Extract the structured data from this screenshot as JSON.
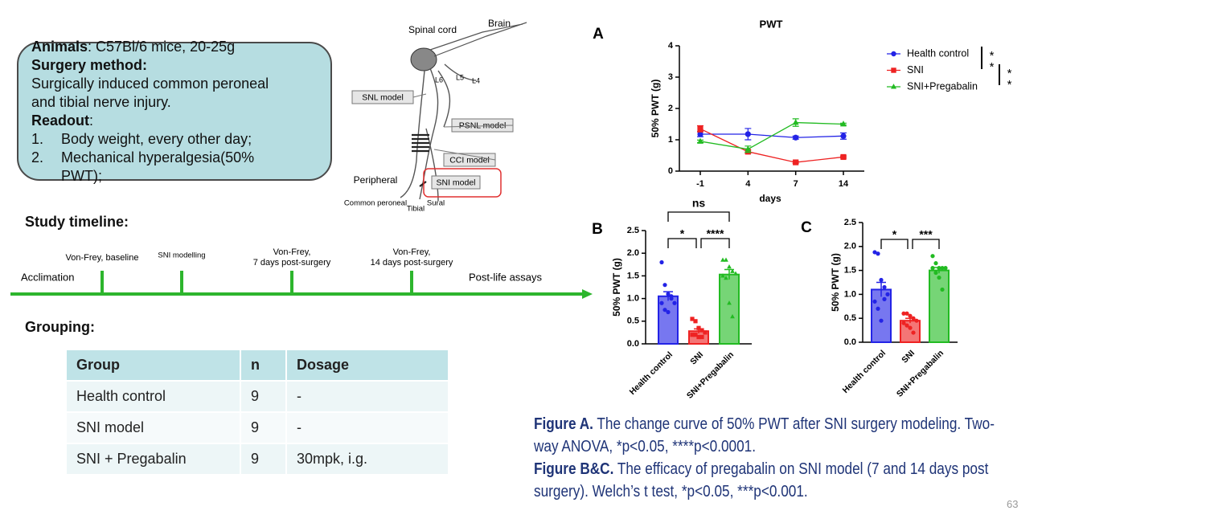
{
  "chart_data": [
    {
      "type": "line",
      "panel": "A",
      "title": "PWT",
      "xlabel": "days",
      "ylabel": "50% PWT (g)",
      "categories": [
        "-1",
        "4",
        "7",
        "14"
      ],
      "ylim": [
        0,
        4
      ],
      "yticks": [
        0,
        1,
        2,
        3,
        4
      ],
      "series": [
        {
          "name": "Health control",
          "color": "#2323e6",
          "marker": "circle",
          "values": [
            1.18,
            1.18,
            1.07,
            1.12
          ],
          "errors": [
            0.08,
            0.18,
            0.05,
            0.1
          ]
        },
        {
          "name": "SNI",
          "color": "#ee2222",
          "marker": "square",
          "values": [
            1.35,
            0.62,
            0.28,
            0.45
          ],
          "errors": [
            0.1,
            0.05,
            0.03,
            0.03
          ]
        },
        {
          "name": "SNI+Pregabalin",
          "color": "#22bb22",
          "marker": "triangle",
          "values": [
            0.95,
            0.7,
            1.55,
            1.5
          ],
          "errors": [
            0.04,
            0.1,
            0.12,
            0.03
          ]
        }
      ],
      "significance": [
        "**",
        "**"
      ]
    },
    {
      "type": "bar",
      "panel": "B",
      "ylabel": "50% PWT (g)",
      "categories": [
        "Health control",
        "SNI",
        "SNI+Pregabalin"
      ],
      "values": [
        1.05,
        0.28,
        1.53
      ],
      "errors": [
        0.1,
        0.05,
        0.11
      ],
      "colors": [
        "#2323e6",
        "#ee2222",
        "#22bb22"
      ],
      "markers": [
        "circle",
        "square",
        "triangle"
      ],
      "points": [
        [
          1.8,
          1.3,
          1.1,
          1.05,
          0.9,
          0.9,
          0.75,
          0.7,
          1.0
        ],
        [
          0.55,
          0.5,
          0.35,
          0.3,
          0.25,
          0.2,
          0.2,
          0.15,
          0.15
        ],
        [
          1.85,
          1.85,
          1.7,
          1.6,
          1.55,
          1.5,
          1.45,
          0.9,
          0.6
        ]
      ],
      "ylim": [
        0,
        2.5
      ],
      "yticks": [
        {
          "value": 0,
          "label": "0.0"
        },
        0.5,
        {
          "value": 1,
          "label": "1.0"
        },
        1.5,
        {
          "value": 2,
          "label": "2.0"
        },
        2.5
      ],
      "significance": [
        "*",
        "****",
        "ns"
      ]
    },
    {
      "type": "bar",
      "panel": "C",
      "ylabel": "50% PWT (g)",
      "categories": [
        "Health control",
        "SNI",
        "SNI+Pregabalin"
      ],
      "values": [
        1.1,
        0.45,
        1.5
      ],
      "errors": [
        0.15,
        0.05,
        0.06
      ],
      "colors": [
        "#2323e6",
        "#ee2222",
        "#22bb22"
      ],
      "markers": [
        "circle",
        "circle",
        "circle"
      ],
      "points": [
        [
          1.88,
          1.85,
          1.3,
          1.15,
          1.0,
          0.85,
          0.7,
          0.45,
          0.9
        ],
        [
          0.6,
          0.6,
          0.55,
          0.5,
          0.45,
          0.4,
          0.35,
          0.3,
          0.2
        ],
        [
          1.8,
          1.65,
          1.55,
          1.55,
          1.55,
          1.55,
          1.45,
          1.35,
          1.1
        ]
      ],
      "ylim": [
        0,
        2.5
      ],
      "yticks": [
        {
          "value": 0,
          "label": "0.0"
        },
        0.5,
        {
          "value": 1,
          "label": "1.0"
        },
        1.5,
        {
          "value": 2,
          "label": "2.0"
        },
        2.5
      ],
      "significance": [
        "*",
        "***"
      ]
    }
  ],
  "info": {
    "animals_label": "Animals",
    "animals": ": C57Bl/6 mice, 20-25g",
    "surgery_label": "Surgery method:",
    "surgery": "Surgically induced common peroneal and tibial nerve injury.",
    "readout_label": "Readout",
    "readout_suffix": ":",
    "items": [
      {
        "number": "1.",
        "text": "Body weight, every other day;"
      },
      {
        "number": "2.",
        "text": "Mechanical hyperalgesia(50% PWT);"
      }
    ]
  },
  "nerve_diagram": {
    "spinal_cord": "Spinal cord",
    "brain": "Brain",
    "roots": [
      "L6",
      "L5",
      "L4"
    ],
    "models": [
      "SNL model",
      "PSNL model",
      "CCI model",
      "SNI model"
    ],
    "peripheral": "Peripheral",
    "branches": [
      "Common peroneal",
      "Tibial",
      "Sural"
    ]
  },
  "timeline": {
    "title": "Study timeline:",
    "start": "Acclimation",
    "end": "Post-life assays",
    "events": [
      [
        "Von-Frey, baseline"
      ],
      [
        "SNI modelling"
      ],
      [
        "Von-Frey,",
        "7 days post-surgery"
      ],
      [
        "Von-Frey,",
        "14 days post-surgery"
      ]
    ]
  },
  "grouping_title": "Grouping:",
  "table": {
    "header": [
      "Group",
      "n",
      "Dosage"
    ],
    "rows": [
      [
        "Health control",
        "9",
        "-"
      ],
      [
        "SNI model",
        "9",
        "-"
      ],
      [
        "SNI + Pregabalin",
        "9",
        "30mpk, i.g."
      ]
    ]
  },
  "caption": [
    {
      "label": "Figure A.",
      "text": "The change curve of 50% PWT after SNI surgery modeling. Two-way ANOVA, *p<0.05, ****p<0.0001."
    },
    {
      "label": "Figure B&C.",
      "text": "The efficacy of pregabalin on SNI model (7 and 14 days post surgery). Welch’s t test, *p<0.05, ***p<0.001."
    }
  ],
  "page_number": "63"
}
